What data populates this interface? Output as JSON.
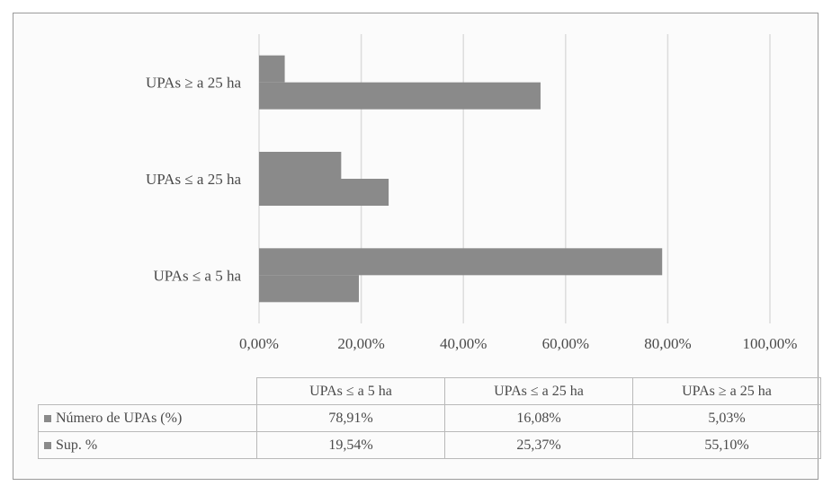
{
  "chart_data": {
    "type": "bar",
    "orientation": "horizontal",
    "categories": [
      "UPAs ≤ a 5 ha",
      "UPAs ≤ a 25 ha",
      "UPAs ≥ a 25 ha"
    ],
    "series": [
      {
        "name": "Número de UPAs (%)",
        "values": [
          78.91,
          16.08,
          5.03
        ],
        "value_labels": [
          "78,91%",
          "16,08%",
          "5,03%"
        ]
      },
      {
        "name": "Sup. %",
        "values": [
          19.54,
          25.37,
          55.1
        ],
        "value_labels": [
          "19,54%",
          "25,37%",
          "55,10%"
        ]
      }
    ],
    "xlim": [
      0,
      100
    ],
    "x_ticks": [
      "0,00%",
      "20,00%",
      "40,00%",
      "60,00%",
      "80,00%",
      "100,00%"
    ],
    "grid": true,
    "legend": "data-table",
    "colors": {
      "bars": "#8a8a8a",
      "grid": "#dcdcdc"
    }
  },
  "table": {
    "headers": [
      "UPAs ≤ a 5 ha",
      "UPAs ≤ a 25 ha",
      "UPAs ≥ a 25 ha"
    ],
    "rows": [
      {
        "label": "Número de UPAs (%)",
        "cells": [
          "78,91%",
          "16,08%",
          "5,03%"
        ]
      },
      {
        "label": "Sup. %",
        "cells": [
          "19,54%",
          "25,37%",
          "55,10%"
        ]
      }
    ]
  }
}
